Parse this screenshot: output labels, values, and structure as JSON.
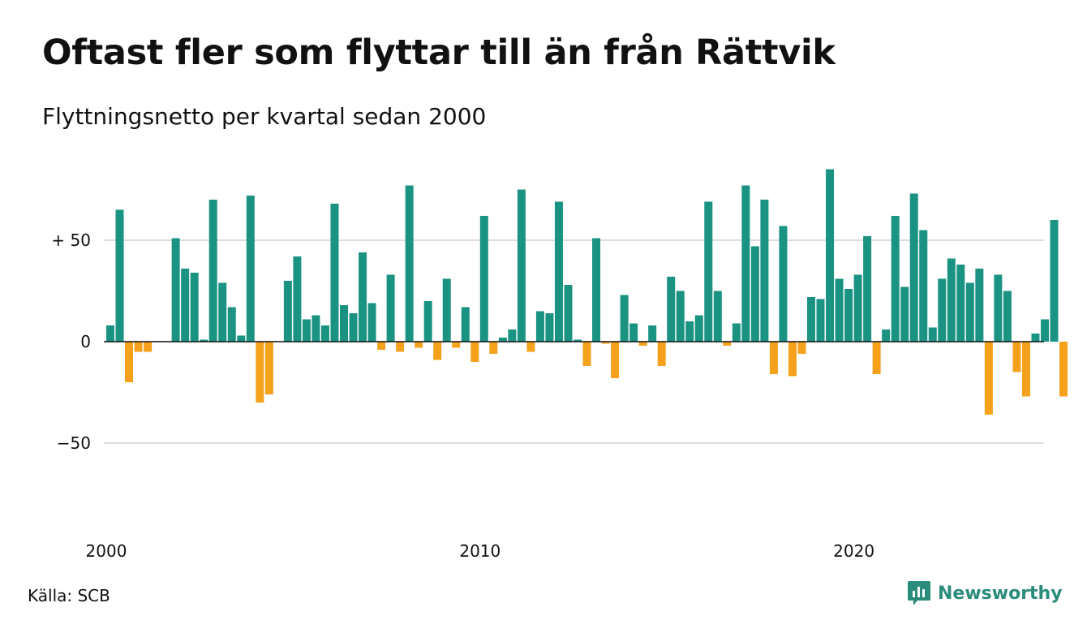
{
  "header": {
    "title": "Oftast fler som flyttar till än från Rättvik",
    "subtitle": "Flyttningsnetto per kvartal sedan 2000"
  },
  "footer": {
    "source": "Källa: SCB",
    "brand": "Newsworthy"
  },
  "colors": {
    "positive": "#1a9383",
    "negative": "#f5a11c",
    "grid": "#dddddd",
    "zero_line": "#111111",
    "brand": "#2a8c7b"
  },
  "icons": {
    "brand_logo": "newsworthy-logo-icon"
  },
  "chart_data": {
    "type": "bar",
    "title": "Oftast fler som flyttar till än från Rättvik",
    "subtitle": "Flyttningsnetto per kvartal sedan 2000",
    "x_start_year": 2000,
    "x_tick_labels": [
      "2000",
      "2010",
      "2020"
    ],
    "x_tick_years": [
      2000,
      2010,
      2020
    ],
    "y_tick_labels": [
      "+ 50",
      "0",
      "−50"
    ],
    "y_tick_values": [
      50,
      0,
      -50
    ],
    "ylim": [
      -88,
      92
    ],
    "grid": true,
    "values": [
      8,
      65,
      -20,
      -5,
      -5,
      0,
      0,
      51,
      36,
      34,
      1,
      70,
      29,
      17,
      3,
      72,
      -30,
      -26,
      0,
      30,
      42,
      11,
      13,
      8,
      68,
      18,
      14,
      44,
      19,
      -4,
      33,
      -5,
      77,
      -3,
      20,
      -9,
      31,
      -3,
      17,
      -10,
      62,
      -6,
      2,
      6,
      75,
      -5,
      15,
      14,
      69,
      28,
      1,
      -12,
      51,
      -1,
      -18,
      23,
      9,
      -2,
      8,
      -12,
      32,
      25,
      10,
      13,
      69,
      25,
      -2,
      9,
      77,
      47,
      70,
      -16,
      57,
      -17,
      -6,
      22,
      21,
      85,
      31,
      26,
      33,
      52,
      -16,
      6,
      62,
      27,
      73,
      55,
      7,
      31,
      41,
      38,
      29,
      36,
      -36,
      33,
      25,
      -15,
      -27,
      4,
      11,
      60,
      -27
    ]
  }
}
